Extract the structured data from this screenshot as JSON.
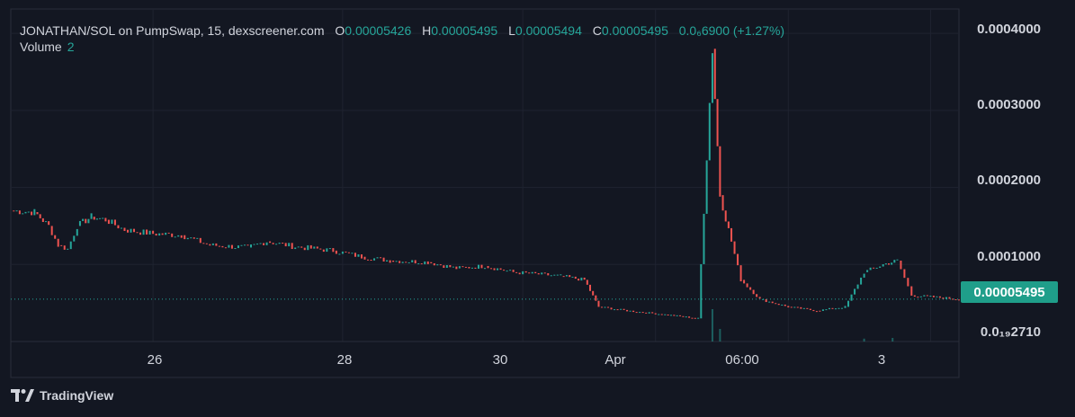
{
  "legend": {
    "symbol": "JONATHAN/SOL on PumpSwap, 15, dexscreener.com",
    "open_label": "O",
    "open_value": "0.00005426",
    "high_label": "H",
    "high_value": "0.00005495",
    "low_label": "L",
    "low_value": "0.00005494",
    "close_label": "C",
    "close_value": "0.00005495",
    "change": "0.0₆6900 (+1.27%)",
    "volume_label": "Volume",
    "volume_value": "2"
  },
  "price_tag": "0.00005495",
  "brand": "TradingView",
  "colors": {
    "up": "#26a69a",
    "down": "#ef5350",
    "bg": "#131722",
    "grid": "#2a2e39"
  },
  "chart_data": {
    "type": "candlestick",
    "y_ticks": [
      "0.0004000",
      "0.0003000",
      "0.0002000",
      "0.0001000",
      "0.0₁₉2710"
    ],
    "y_tick_values": [
      0.0004,
      0.0003,
      0.0002,
      0.0001,
      2.71e-07
    ],
    "x_ticks": [
      "26",
      "28",
      "30",
      "Apr",
      "06:00",
      "3"
    ],
    "x_tick_positions": [
      0.15,
      0.35,
      0.54,
      0.68,
      0.82,
      0.97
    ],
    "ylim": [
      0,
      0.00042
    ],
    "last_price": 5.495e-05,
    "series": [
      {
        "name": "price",
        "points": [
          [
            0.0,
            0.00017
          ],
          [
            0.025,
            0.000168
          ],
          [
            0.04,
            0.00015
          ],
          [
            0.05,
            0.000125
          ],
          [
            0.06,
            0.00012
          ],
          [
            0.07,
            0.00015
          ],
          [
            0.085,
            0.000162
          ],
          [
            0.1,
            0.000158
          ],
          [
            0.12,
            0.000145
          ],
          [
            0.15,
            0.00014
          ],
          [
            0.18,
            0.000138
          ],
          [
            0.21,
            0.000125
          ],
          [
            0.25,
            0.000122
          ],
          [
            0.27,
            0.00013
          ],
          [
            0.3,
            0.000123
          ],
          [
            0.34,
            0.000118
          ],
          [
            0.37,
            0.00011
          ],
          [
            0.4,
            0.000105
          ],
          [
            0.44,
            0.000103
          ],
          [
            0.47,
            9.5e-05
          ],
          [
            0.5,
            9.8e-05
          ],
          [
            0.53,
            9e-05
          ],
          [
            0.58,
            8.5e-05
          ],
          [
            0.605,
            8e-05
          ],
          [
            0.62,
            4.5e-05
          ],
          [
            0.65,
            4e-05
          ],
          [
            0.69,
            3.5e-05
          ],
          [
            0.725,
            3e-05
          ],
          [
            0.74,
            0.00038
          ],
          [
            0.748,
            0.00019
          ],
          [
            0.76,
            0.00013
          ],
          [
            0.77,
            8e-05
          ],
          [
            0.79,
            5.5e-05
          ],
          [
            0.82,
            4.5e-05
          ],
          [
            0.85,
            4e-05
          ],
          [
            0.88,
            4.5e-05
          ],
          [
            0.9,
            9e-05
          ],
          [
            0.92,
            0.0001
          ],
          [
            0.935,
            0.000105
          ],
          [
            0.95,
            6e-05
          ],
          [
            0.98,
            5.7e-05
          ],
          [
            1.0,
            5.5e-05
          ]
        ]
      }
    ],
    "volume_spikes": [
      [
        0.74,
        0.9
      ],
      [
        0.748,
        0.35
      ],
      [
        0.9,
        0.08
      ],
      [
        0.93,
        0.1
      ]
    ]
  }
}
